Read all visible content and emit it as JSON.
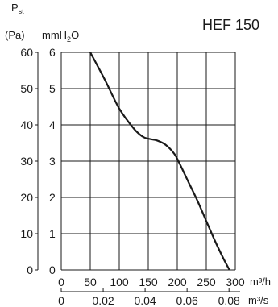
{
  "chart_data": {
    "type": "line",
    "title": "HEF 150",
    "left_axis": {
      "label_main": "P",
      "label_sub": "st",
      "label_unit": "(Pa)",
      "ticks": [
        0,
        10,
        20,
        30,
        40,
        50,
        60
      ],
      "ylim": [
        0,
        60
      ]
    },
    "inner_axis": {
      "label_main": "mmH",
      "label_sub": "2",
      "label_end": "O",
      "ticks": [
        0,
        1,
        2,
        3,
        4,
        5,
        6
      ],
      "ylim": [
        0,
        6
      ]
    },
    "x_axis_primary": {
      "unit": "m³/h",
      "ticks": [
        0,
        50,
        100,
        150,
        200,
        250,
        300
      ],
      "xlim": [
        0,
        300
      ]
    },
    "x_axis_secondary": {
      "unit": "m³/s",
      "ticks": [
        "0",
        "0.02",
        "0.04",
        "0.06",
        "0.08"
      ],
      "tick_values": [
        0,
        0.02,
        0.04,
        0.06,
        0.08
      ]
    },
    "grid": true,
    "series": [
      {
        "x": [
          50,
          75,
          100,
          125,
          140,
          150,
          165,
          180,
          195,
          205,
          220,
          235,
          250,
          265,
          280,
          290
        ],
        "y": [
          6.0,
          5.25,
          4.45,
          3.9,
          3.68,
          3.62,
          3.57,
          3.45,
          3.2,
          2.9,
          2.4,
          1.9,
          1.35,
          0.8,
          0.3,
          0.0
        ]
      }
    ]
  }
}
